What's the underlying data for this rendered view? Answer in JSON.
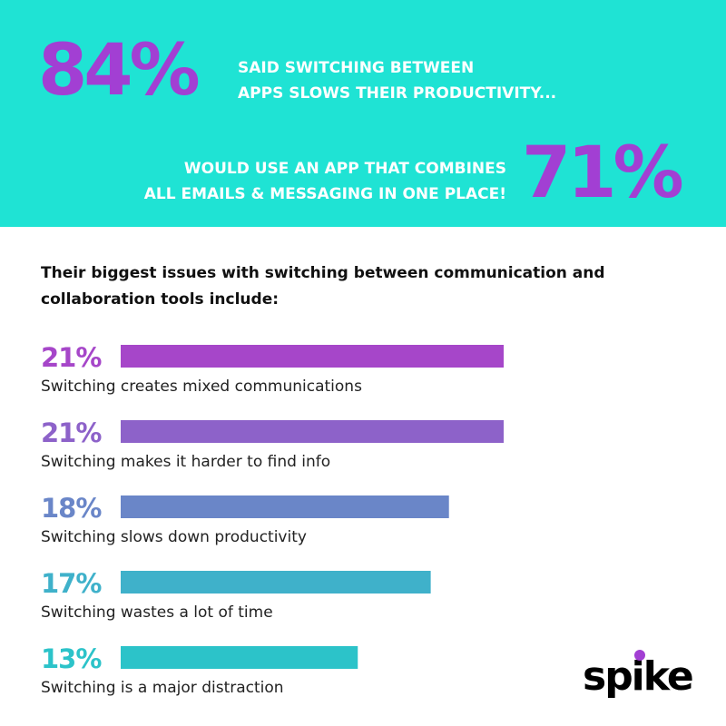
{
  "header": {
    "stats": [
      {
        "figure": "84%",
        "lines": [
          "SAID SWITCHING BETWEEN",
          "APPS SLOWS THEIR PRODUCTIVITY..."
        ]
      },
      {
        "figure": "71%",
        "lines": [
          "WOULD USE AN APP THAT COMBINES",
          "ALL EMAILS & MESSAGING IN ONE PLACE!"
        ]
      }
    ]
  },
  "chart_data": {
    "type": "bar",
    "orientation": "horizontal",
    "title_lines": [
      "Their biggest issues with switching between communication and",
      "collaboration tools include:"
    ],
    "categories": [
      "Switching creates mixed communications",
      "Switching makes it harder to find info",
      "Switching slows down productivity",
      "Switching wastes a lot of time",
      "Switching is a major distraction"
    ],
    "values": [
      21,
      21,
      18,
      17,
      13
    ],
    "value_labels": [
      "21%",
      "21%",
      "18%",
      "17%",
      "13%"
    ],
    "colors": [
      "#a646c9",
      "#8d62c9",
      "#6a86c8",
      "#3fb1ca",
      "#2cc3c9"
    ]
  },
  "brand": "spike"
}
